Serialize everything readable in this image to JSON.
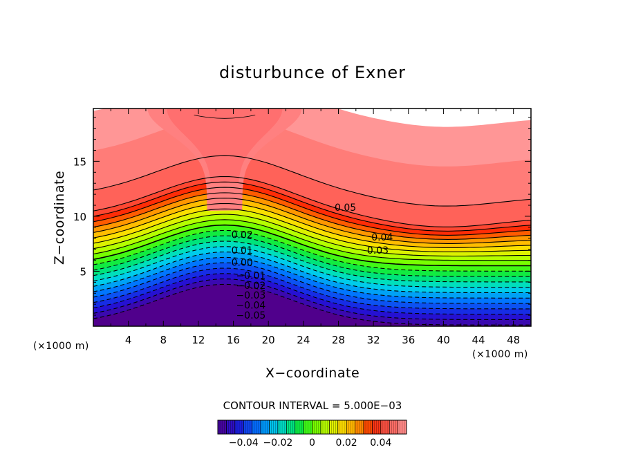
{
  "chart_data": {
    "type": "contour",
    "title": "disturbunce of Exner",
    "xlabel": "X−coordinate",
    "ylabel": "Z−coordinate",
    "x_unit_left": "(×1000 m)",
    "x_unit_right": "(×1000 m)",
    "xlim": [
      0,
      50
    ],
    "ylim": [
      0,
      19.8
    ],
    "x_ticks": [
      4,
      8,
      12,
      16,
      20,
      24,
      28,
      32,
      36,
      40,
      44,
      48
    ],
    "y_ticks": [
      5,
      10,
      15
    ],
    "contour_interval_text": "CONTOUR INTERVAL = 5.000E−03",
    "contour_interval": 0.005,
    "value_range": [
      -0.055,
      0.06
    ],
    "field": {
      "mountain_center_x": 15,
      "height_amplitude": 3.7,
      "height_width": 11,
      "lateral_amplitude": 6.8,
      "lateral_width": 11,
      "top_dip_center_x": 40,
      "top_dip_amplitude": 0.9,
      "top_dip_width": 9
    },
    "contour_labels": [
      {
        "text": "0.05",
        "x": 28.8,
        "y": 10.5
      },
      {
        "text": "0.04",
        "x": 33.0,
        "y": 7.8
      },
      {
        "text": "0.03",
        "x": 32.5,
        "y": 6.6
      },
      {
        "text": "0.02",
        "x": 17.0,
        "y": 8.0
      },
      {
        "text": "0.01",
        "x": 17.0,
        "y": 6.6
      },
      {
        "text": "0.00",
        "x": 17.0,
        "y": 5.5
      },
      {
        "text": "−0.01",
        "x": 18.0,
        "y": 4.3
      },
      {
        "text": "−0.02",
        "x": 18.0,
        "y": 3.4
      },
      {
        "text": "−0.03",
        "x": 18.0,
        "y": 2.5
      },
      {
        "text": "−0.04",
        "x": 18.0,
        "y": 1.6
      },
      {
        "text": "−0.05",
        "x": 18.0,
        "y": 0.7
      }
    ],
    "colorbar": {
      "range": [
        -0.055,
        0.055
      ],
      "tick_values": [
        -0.04,
        -0.02,
        0,
        0.02,
        0.04
      ],
      "tick_labels": [
        "−0.04",
        "−0.02",
        "0",
        "0.02",
        "0.04"
      ]
    }
  }
}
